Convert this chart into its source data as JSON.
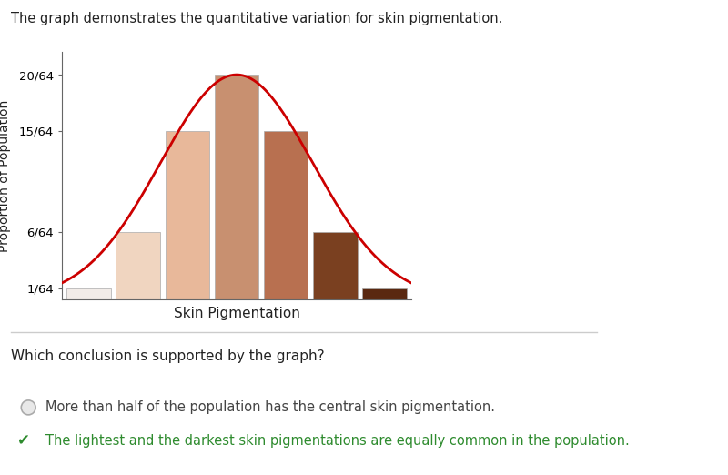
{
  "title": "The graph demonstrates the quantitative variation for skin pigmentation.",
  "xlabel": "Skin Pigmentation",
  "ylabel": "Proportion of Population",
  "bar_values": [
    1,
    6,
    15,
    20,
    15,
    6,
    1
  ],
  "bar_colors": [
    "#f2ece8",
    "#f0d5c0",
    "#e8b89a",
    "#c89070",
    "#b87050",
    "#7a4020",
    "#5a2810"
  ],
  "ytick_labels": [
    "1/64",
    "6/64",
    "15/64",
    "20/64"
  ],
  "ytick_values": [
    1,
    6,
    15,
    20
  ],
  "curve_color": "#cc0000",
  "bg_color": "#ffffff",
  "question": "Which conclusion is supported by the graph?",
  "option1": "More than half of the population has the central skin pigmentation.",
  "option2": "The lightest and the darkest skin pigmentations are equally common in the population.",
  "correct_option": 2,
  "figsize": [
    8.0,
    5.22
  ],
  "dpi": 100
}
